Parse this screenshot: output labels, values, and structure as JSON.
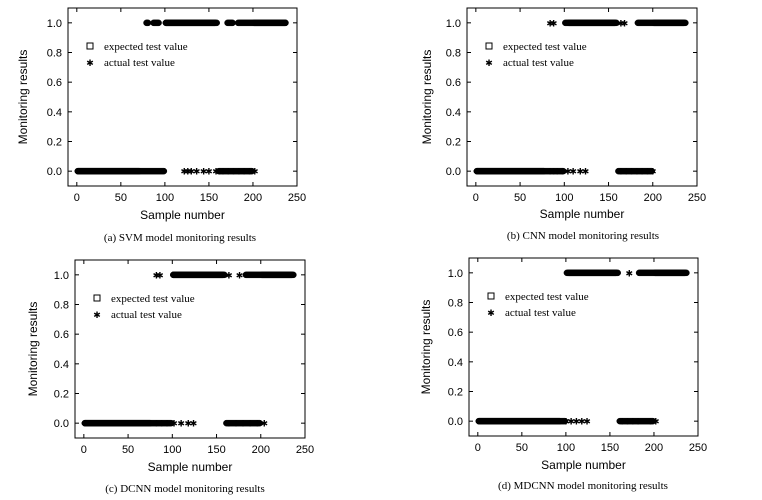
{
  "chart_data": [
    {
      "type": "scatter",
      "caption": "(a) SVM model monitoring results",
      "xlabel": "Sample number",
      "ylabel": "Monitoring results",
      "xlim": [
        -10,
        250
      ],
      "ylim": [
        -0.1,
        1.1
      ],
      "xticks": [
        "0",
        "50",
        "100",
        "150",
        "200",
        "250"
      ],
      "yticks": [
        "0.0",
        "0.2",
        "0.4",
        "0.6",
        "0.8",
        "1.0"
      ],
      "legend": {
        "position": "upper-left",
        "entries": [
          "expected test value",
          "actual test value"
        ]
      },
      "series": [
        {
          "name": "expected test value",
          "marker": "square",
          "segments": [
            [
              0,
              100,
              0
            ],
            [
              100,
              160,
              1
            ],
            [
              160,
              200,
              0
            ],
            [
              200,
              238,
              1
            ]
          ]
        },
        {
          "name": "actual test value",
          "marker": "star",
          "segments": [
            [
              0,
              72,
              0
            ],
            [
              78,
              82,
              1
            ],
            [
              86,
              94,
              1
            ],
            [
              100,
              158,
              1
            ],
            [
              170,
              178,
              1
            ],
            [
              182,
              238,
              1
            ]
          ],
          "points": [
            [
              122,
              0
            ],
            [
              126,
              0
            ],
            [
              130,
              0
            ],
            [
              136,
              0
            ],
            [
              144,
              0
            ],
            [
              150,
              0
            ],
            [
              158,
              0
            ],
            [
              162,
              0
            ],
            [
              166,
              0
            ],
            [
              172,
              0
            ],
            [
              178,
              0
            ],
            [
              184,
              0
            ],
            [
              190,
              0
            ],
            [
              196,
              0
            ],
            [
              202,
              0
            ]
          ]
        }
      ]
    },
    {
      "type": "scatter",
      "caption": "(b) CNN model monitoring results",
      "xlabel": "Sample number",
      "ylabel": "Monitoring results",
      "xlim": [
        -10,
        250
      ],
      "ylim": [
        -0.1,
        1.1
      ],
      "xticks": [
        "0",
        "50",
        "100",
        "150",
        "200",
        "250"
      ],
      "yticks": [
        "0.0",
        "0.2",
        "0.4",
        "0.6",
        "0.8",
        "1.0"
      ],
      "legend": {
        "position": "upper-left",
        "entries": [
          "expected test value",
          "actual test value"
        ]
      },
      "series": [
        {
          "name": "expected test value",
          "marker": "square",
          "segments": [
            [
              0,
              100,
              0
            ],
            [
              100,
              160,
              1
            ],
            [
              160,
              200,
              0
            ],
            [
              200,
              238,
              1
            ]
          ]
        },
        {
          "name": "actual test value",
          "marker": "star",
          "segments": [
            [
              0,
              78,
              0
            ],
            [
              104,
              158,
              1
            ],
            [
              182,
              236,
              1
            ]
          ],
          "points": [
            [
              84,
              1
            ],
            [
              88,
              1
            ],
            [
              164,
              1
            ],
            [
              168,
              1
            ],
            [
              84,
              0
            ],
            [
              88,
              0
            ],
            [
              92,
              0
            ],
            [
              98,
              0
            ],
            [
              104,
              0
            ],
            [
              110,
              0
            ],
            [
              118,
              0
            ],
            [
              124,
              0
            ],
            [
              164,
              0
            ],
            [
              170,
              0
            ],
            [
              176,
              0
            ],
            [
              182,
              0
            ],
            [
              188,
              0
            ],
            [
              194,
              0
            ],
            [
              200,
              0
            ]
          ]
        }
      ]
    },
    {
      "type": "scatter",
      "caption": "(c) DCNN model monitoring results",
      "xlabel": "Sample number",
      "ylabel": "Monitoring results",
      "xlim": [
        -10,
        250
      ],
      "ylim": [
        -0.1,
        1.1
      ],
      "xticks": [
        "0",
        "50",
        "100",
        "150",
        "200",
        "250"
      ],
      "yticks": [
        "0.0",
        "0.2",
        "0.4",
        "0.6",
        "0.8",
        "1.0"
      ],
      "legend": {
        "position": "upper-left",
        "entries": [
          "expected test value",
          "actual test value"
        ]
      },
      "series": [
        {
          "name": "expected test value",
          "marker": "square",
          "segments": [
            [
              0,
              100,
              0
            ],
            [
              100,
              160,
              1
            ],
            [
              160,
              200,
              0
            ],
            [
              200,
              238,
              1
            ]
          ]
        },
        {
          "name": "actual test value",
          "marker": "star",
          "segments": [
            [
              0,
              76,
              0
            ],
            [
              100,
              158,
              1
            ],
            [
              182,
              236,
              1
            ]
          ],
          "points": [
            [
              82,
              1
            ],
            [
              86,
              1
            ],
            [
              164,
              1
            ],
            [
              176,
              1
            ],
            [
              82,
              0
            ],
            [
              88,
              0
            ],
            [
              94,
              0
            ],
            [
              102,
              0
            ],
            [
              110,
              0
            ],
            [
              118,
              0
            ],
            [
              124,
              0
            ],
            [
              164,
              0
            ],
            [
              172,
              0
            ],
            [
              180,
              0
            ],
            [
              188,
              0
            ],
            [
              196,
              0
            ],
            [
              204,
              0
            ]
          ]
        }
      ]
    },
    {
      "type": "scatter",
      "caption": "(d) MDCNN model monitoring results",
      "xlabel": "Sample number",
      "ylabel": "Monitoring results",
      "xlim": [
        -10,
        250
      ],
      "ylim": [
        -0.1,
        1.1
      ],
      "xticks": [
        "0",
        "50",
        "100",
        "150",
        "200",
        "250"
      ],
      "yticks": [
        "0.0",
        "0.2",
        "0.4",
        "0.6",
        "0.8",
        "1.0"
      ],
      "legend": {
        "position": "upper-left",
        "entries": [
          "expected test value",
          "actual test value"
        ]
      },
      "series": [
        {
          "name": "expected test value",
          "marker": "square",
          "segments": [
            [
              0,
              100,
              0
            ],
            [
              100,
              160,
              1
            ],
            [
              160,
              200,
              0
            ],
            [
              200,
              238,
              1
            ]
          ]
        },
        {
          "name": "actual test value",
          "marker": "star",
          "segments": [
            [
              0,
              94,
              0
            ],
            [
              102,
              158,
              1
            ],
            [
              182,
              236,
              1
            ]
          ],
          "points": [
            [
              172,
              1
            ],
            [
              100,
              0
            ],
            [
              106,
              0
            ],
            [
              112,
              0
            ],
            [
              118,
              0
            ],
            [
              124,
              0
            ],
            [
              164,
              0
            ],
            [
              170,
              0
            ],
            [
              176,
              0
            ],
            [
              182,
              0
            ],
            [
              196,
              0
            ],
            [
              202,
              0
            ]
          ]
        }
      ]
    }
  ]
}
